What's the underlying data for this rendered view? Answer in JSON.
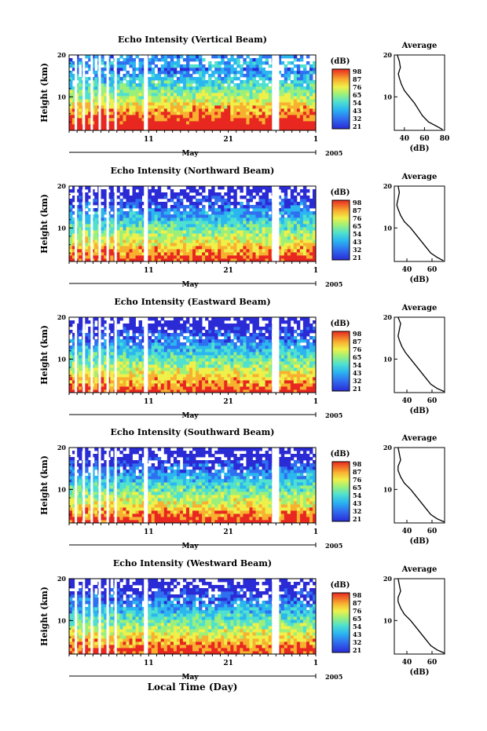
{
  "figure": {
    "xaxis_title": "Local Time (Day)",
    "month_label": "May",
    "year_label": "2005",
    "colorbar_unit": "(dB)",
    "colorbar_ticks": [
      "98",
      "87",
      "76",
      "65",
      "54",
      "43",
      "32",
      "21"
    ]
  },
  "chart_data": [
    {
      "type": "heatmap",
      "title": "Echo Intensity (Vertical Beam)",
      "ylabel": "Height (km)",
      "ylim": [
        2,
        20
      ],
      "yticks": [
        "10",
        "20"
      ],
      "xticks": [
        "11",
        "21",
        "1"
      ],
      "xlabel": "May",
      "colorbar": {
        "label": "(dB)",
        "range": [
          21,
          98
        ],
        "ticks": [
          98,
          87,
          76,
          65,
          54,
          43,
          32,
          21
        ]
      },
      "gaps_day": [
        [
          1.7,
          2.0
        ],
        [
          2.7,
          3.0
        ],
        [
          3.7,
          4.0
        ],
        [
          4.7,
          5.0
        ],
        [
          5.7,
          6.0
        ],
        [
          6.7,
          7.0
        ],
        [
          10.4,
          10.9
        ],
        [
          26.5,
          27.4
        ]
      ],
      "profile": {
        "title": "Average",
        "xlabel": "(dB)",
        "xlim": [
          30,
          80
        ],
        "xticks": [
          40,
          60,
          80
        ],
        "ylim": [
          2,
          20
        ],
        "yticks": [
          10,
          20
        ],
        "points": [
          [
            78,
            2.2
          ],
          [
            72,
            3
          ],
          [
            64,
            4
          ],
          [
            58,
            5.5
          ],
          [
            54,
            7
          ],
          [
            50,
            8.5
          ],
          [
            45,
            10
          ],
          [
            40,
            11.5
          ],
          [
            37,
            13
          ],
          [
            35,
            14.5
          ],
          [
            34,
            15.5
          ],
          [
            36,
            17
          ],
          [
            35,
            18.5
          ],
          [
            33,
            20
          ]
        ]
      }
    },
    {
      "type": "heatmap",
      "title": "Echo Intensity (Northward Beam)",
      "ylabel": "Height (km)",
      "ylim": [
        2,
        20
      ],
      "yticks": [
        "10",
        "20"
      ],
      "xticks": [
        "11",
        "21",
        "1"
      ],
      "xlabel": "May",
      "colorbar": {
        "label": "(dB)",
        "range": [
          21,
          98
        ],
        "ticks": [
          98,
          87,
          76,
          65,
          54,
          43,
          32,
          21
        ]
      },
      "gaps_day": [
        [
          1.7,
          2.0
        ],
        [
          2.7,
          3.0
        ],
        [
          3.7,
          4.0
        ],
        [
          4.7,
          5.0
        ],
        [
          5.7,
          6.0
        ],
        [
          6.7,
          7.0
        ],
        [
          10.4,
          10.9
        ],
        [
          26.5,
          27.4
        ]
      ],
      "profile": {
        "title": "Average",
        "xlabel": "(dB)",
        "xlim": [
          30,
          70
        ],
        "xticks": [
          40,
          60
        ],
        "ylim": [
          2,
          20
        ],
        "yticks": [
          10,
          20
        ],
        "points": [
          [
            69,
            2.2
          ],
          [
            64,
            3
          ],
          [
            59,
            4
          ],
          [
            55,
            5.5
          ],
          [
            51,
            7
          ],
          [
            47,
            8.5
          ],
          [
            43,
            10
          ],
          [
            38,
            11.5
          ],
          [
            35,
            13
          ],
          [
            33,
            14.5
          ],
          [
            32,
            15.5
          ],
          [
            33,
            17
          ],
          [
            34,
            18.5
          ],
          [
            33,
            20
          ]
        ]
      }
    },
    {
      "type": "heatmap",
      "title": "Echo Intensity (Eastward Beam)",
      "ylabel": "Height (km)",
      "ylim": [
        2,
        20
      ],
      "yticks": [
        "10",
        "20"
      ],
      "xticks": [
        "11",
        "21",
        "1"
      ],
      "xlabel": "May",
      "colorbar": {
        "label": "(dB)",
        "range": [
          21,
          98
        ],
        "ticks": [
          98,
          87,
          76,
          65,
          54,
          43,
          32,
          21
        ]
      },
      "gaps_day": [
        [
          1.7,
          2.0
        ],
        [
          2.7,
          3.0
        ],
        [
          3.7,
          4.0
        ],
        [
          4.7,
          5.0
        ],
        [
          5.7,
          6.0
        ],
        [
          6.7,
          7.0
        ],
        [
          10.4,
          10.9
        ],
        [
          26.5,
          27.4
        ]
      ],
      "profile": {
        "title": "Average",
        "xlabel": "(dB)",
        "xlim": [
          30,
          70
        ],
        "xticks": [
          40,
          60
        ],
        "ylim": [
          2,
          20
        ],
        "yticks": [
          10,
          20
        ],
        "points": [
          [
            70,
            2.2
          ],
          [
            64,
            3
          ],
          [
            59,
            4
          ],
          [
            55,
            5.5
          ],
          [
            51,
            7
          ],
          [
            47,
            8.5
          ],
          [
            43,
            10
          ],
          [
            39,
            11.5
          ],
          [
            36,
            13
          ],
          [
            34,
            14.5
          ],
          [
            33,
            15.5
          ],
          [
            34,
            17
          ],
          [
            35,
            18.5
          ],
          [
            33,
            20
          ]
        ]
      }
    },
    {
      "type": "heatmap",
      "title": "Echo Intensity (Southward Beam)",
      "ylabel": "Height (km)",
      "ylim": [
        2,
        20
      ],
      "yticks": [
        "10",
        "20"
      ],
      "xticks": [
        "11",
        "21",
        "1"
      ],
      "xlabel": "May",
      "colorbar": {
        "label": "(dB)",
        "range": [
          21,
          98
        ],
        "ticks": [
          98,
          87,
          76,
          65,
          54,
          43,
          32,
          21
        ]
      },
      "gaps_day": [
        [
          1.7,
          2.0
        ],
        [
          2.7,
          3.0
        ],
        [
          3.7,
          4.0
        ],
        [
          4.7,
          5.0
        ],
        [
          5.7,
          6.0
        ],
        [
          6.7,
          7.0
        ],
        [
          10.4,
          10.9
        ],
        [
          26.5,
          27.4
        ]
      ],
      "profile": {
        "title": "Average",
        "xlabel": "(dB)",
        "xlim": [
          30,
          70
        ],
        "xticks": [
          40,
          60
        ],
        "ylim": [
          2,
          20
        ],
        "yticks": [
          10,
          20
        ],
        "points": [
          [
            70,
            2.2
          ],
          [
            64,
            3
          ],
          [
            59,
            4
          ],
          [
            55,
            5.5
          ],
          [
            51,
            7
          ],
          [
            47,
            8.5
          ],
          [
            43,
            10
          ],
          [
            38,
            11.5
          ],
          [
            35,
            13
          ],
          [
            33,
            14.5
          ],
          [
            33,
            15.5
          ],
          [
            35,
            17
          ],
          [
            34,
            18.5
          ],
          [
            33,
            20
          ]
        ]
      }
    },
    {
      "type": "heatmap",
      "title": "Echo Intensity (Westward Beam)",
      "ylabel": "Height (km)",
      "ylim": [
        2,
        20
      ],
      "yticks": [
        "10",
        "20"
      ],
      "xticks": [
        "11",
        "21",
        "1"
      ],
      "xlabel": "May",
      "colorbar": {
        "label": "(dB)",
        "range": [
          21,
          98
        ],
        "ticks": [
          98,
          87,
          76,
          65,
          54,
          43,
          32,
          21
        ]
      },
      "gaps_day": [
        [
          1.7,
          2.0
        ],
        [
          2.7,
          3.0
        ],
        [
          3.7,
          4.0
        ],
        [
          4.7,
          5.0
        ],
        [
          5.7,
          6.0
        ],
        [
          6.7,
          7.0
        ],
        [
          10.4,
          10.9
        ],
        [
          26.5,
          27.4
        ]
      ],
      "profile": {
        "title": "Average",
        "xlabel": "(dB)",
        "xlim": [
          30,
          70
        ],
        "xticks": [
          40,
          60
        ],
        "ylim": [
          2,
          20
        ],
        "yticks": [
          10,
          20
        ],
        "points": [
          [
            70,
            2.2
          ],
          [
            64,
            3
          ],
          [
            59,
            4
          ],
          [
            55,
            5.5
          ],
          [
            51,
            7
          ],
          [
            47,
            8.5
          ],
          [
            43,
            10
          ],
          [
            38,
            11.5
          ],
          [
            35,
            13
          ],
          [
            33,
            14.5
          ],
          [
            33,
            15.5
          ],
          [
            35,
            17
          ],
          [
            34,
            18.5
          ],
          [
            33,
            20
          ]
        ]
      }
    }
  ]
}
